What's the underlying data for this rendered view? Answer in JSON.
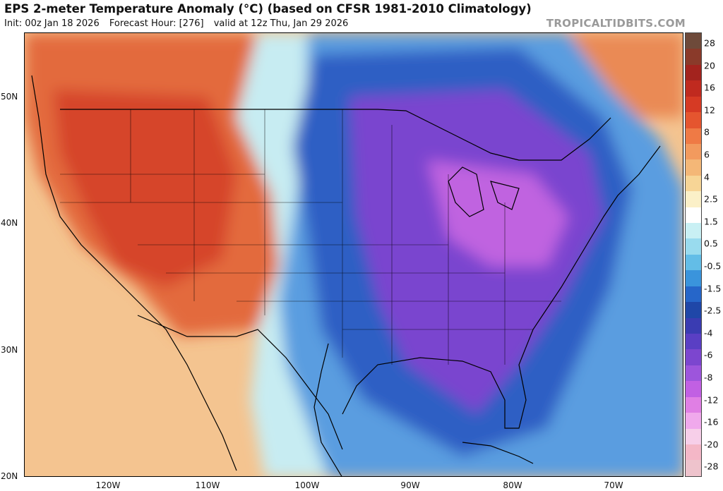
{
  "header": {
    "title": "EPS 2-meter Temperature Anomaly (°C) (based on CFSR 1981-2010 Climatology)",
    "init": "Init: 00z Jan 18 2026",
    "forecast_hour": "Forecast Hour: [276]",
    "valid": "valid at 12z Thu, Jan 29 2026",
    "credit": "TROPICALTIDBITS.COM"
  },
  "map": {
    "lat_labels": [
      "50N",
      "40N",
      "30N",
      "20N"
    ],
    "lon_labels": [
      "120W",
      "110W",
      "100W",
      "90W",
      "80W",
      "70W"
    ]
  },
  "colorbar": {
    "labels": [
      "28",
      "20",
      "16",
      "12",
      "8",
      "6",
      "4",
      "2.5",
      "1.5",
      "0.5",
      "-0.5",
      "-1.5",
      "-2.5",
      "-4",
      "-6",
      "-8",
      "-12",
      "-16",
      "-20",
      "-28"
    ],
    "colors": [
      "#6e4a3a",
      "#8a3a2a",
      "#a3231e",
      "#c02a1f",
      "#d63a24",
      "#e5552f",
      "#ef7a45",
      "#f29a5e",
      "#f4b777",
      "#f7d596",
      "#fbf0c8",
      "#ffffff",
      "#c9f0f4",
      "#99dbee",
      "#63bde7",
      "#3a94dc",
      "#2666c9",
      "#1f47a8",
      "#3a3cb2",
      "#5a3fc4",
      "#7c46cf",
      "#9d55dc",
      "#c160e3",
      "#e07fe4",
      "#f0a9ec",
      "#f7cfe9",
      "#f4b7c7",
      "#eec3cc"
    ]
  }
}
